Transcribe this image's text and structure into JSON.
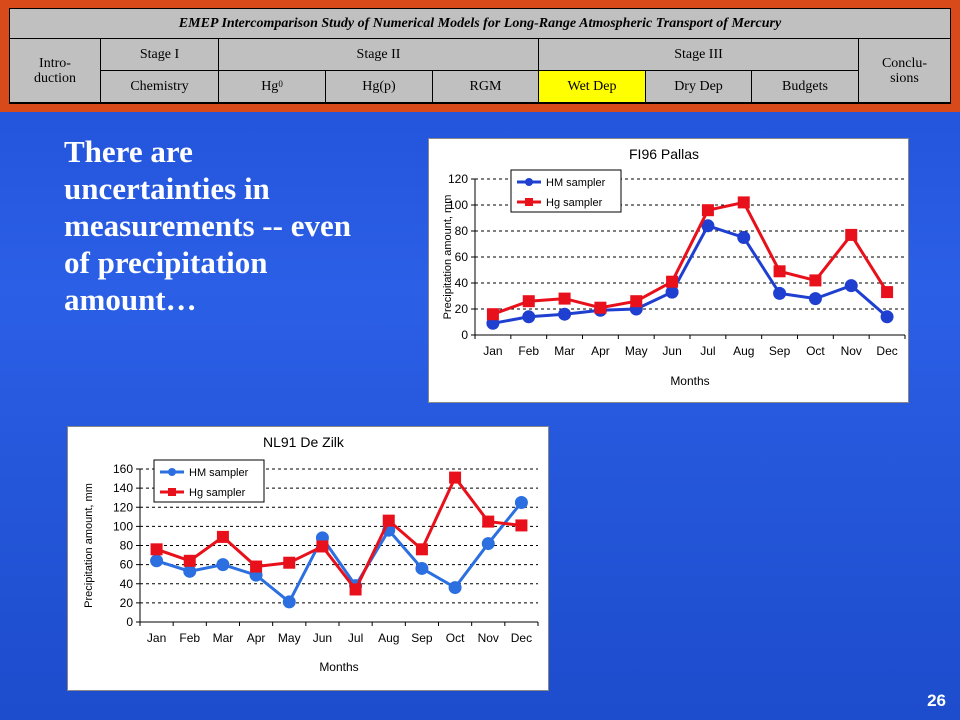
{
  "header": {
    "title": "EMEP Intercomparison Study of Numerical Models for Long-Range Atmospheric Transport of Mercury",
    "nav": {
      "intro": "Intro-\nduction",
      "stage1": "Stage I",
      "stage2": "Stage II",
      "stage3": "Stage III",
      "conclusions": "Conclu-\nsions",
      "chemistry": "Chemistry",
      "hg0_base": "Hg",
      "hg0_sup": "0",
      "hgp": "Hg(p)",
      "rgm": "RGM",
      "wetdep": "Wet Dep",
      "drydep": "Dry Dep",
      "budgets": "Budgets"
    },
    "colors": {
      "frame": "#d84a1a",
      "cell": "#c0c0c0",
      "active": "#ffff00"
    }
  },
  "slide": {
    "text": "There are uncertainties in measurements -- even of precipitation amount…",
    "page_number": "26",
    "background": "#2457dc"
  },
  "chart_data": [
    {
      "type": "line",
      "title": "FI96 Pallas",
      "xlabel": "Months",
      "ylabel": "Precipitation amount, mm",
      "categories": [
        "Jan",
        "Feb",
        "Mar",
        "Apr",
        "May",
        "Jun",
        "Jul",
        "Aug",
        "Sep",
        "Oct",
        "Nov",
        "Dec"
      ],
      "ylim": [
        0,
        120
      ],
      "yticks": [
        0,
        20,
        40,
        60,
        80,
        100,
        120
      ],
      "grid": true,
      "legend": "top-left",
      "series": [
        {
          "name": "HM sampler",
          "color": "#1f3fd0",
          "marker": "circle",
          "values": [
            9,
            14,
            16,
            19,
            20,
            33,
            84,
            75,
            32,
            28,
            38,
            14
          ]
        },
        {
          "name": "Hg sampler",
          "color": "#e8101a",
          "marker": "square",
          "values": [
            16,
            26,
            28,
            21,
            26,
            41,
            96,
            102,
            49,
            42,
            77,
            33
          ]
        }
      ]
    },
    {
      "type": "line",
      "title": "NL91 De Zilk",
      "xlabel": "Months",
      "ylabel": "Precipitation amount, mm",
      "categories": [
        "Jan",
        "Feb",
        "Mar",
        "Apr",
        "May",
        "Jun",
        "Jul",
        "Aug",
        "Sep",
        "Oct",
        "Nov",
        "Dec"
      ],
      "ylim": [
        0,
        160
      ],
      "yticks": [
        0,
        20,
        40,
        60,
        80,
        100,
        120,
        140,
        160
      ],
      "grid": true,
      "legend": "top-left",
      "series": [
        {
          "name": "HM sampler",
          "color": "#2b6fe0",
          "marker": "circle",
          "values": [
            64,
            53,
            60,
            49,
            21,
            88,
            38,
            96,
            56,
            36,
            82,
            125
          ]
        },
        {
          "name": "Hg sampler",
          "color": "#e8101a",
          "marker": "square",
          "values": [
            76,
            64,
            89,
            58,
            62,
            79,
            34,
            106,
            76,
            151,
            105,
            101
          ]
        }
      ]
    }
  ]
}
